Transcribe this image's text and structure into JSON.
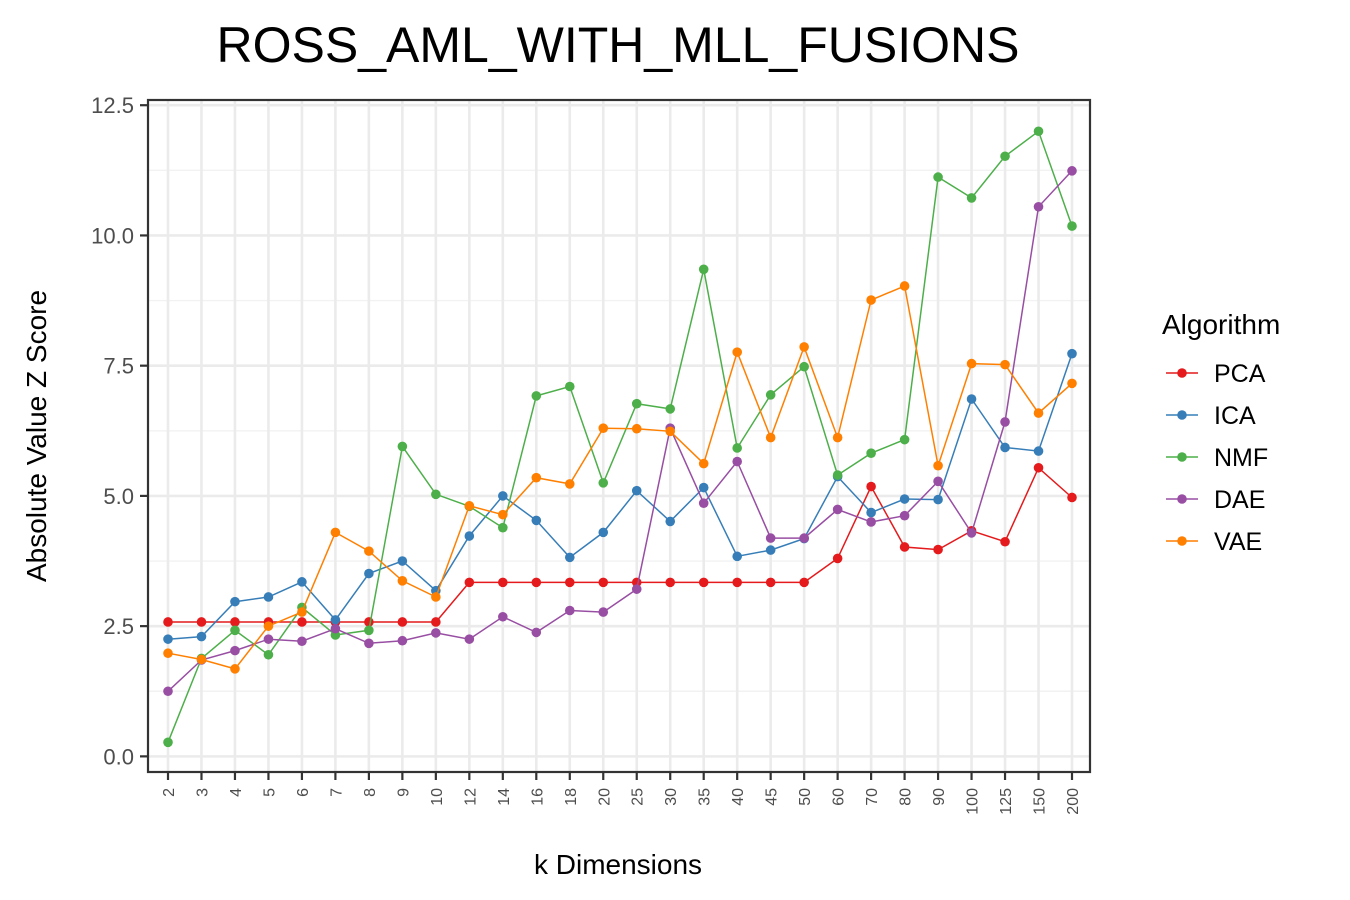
{
  "chart_data": {
    "type": "line",
    "title": "ROSS_AML_WITH_MLL_FUSIONS",
    "xlabel": "k Dimensions",
    "ylabel": "Absolute Value Z Score",
    "categories": [
      "2",
      "3",
      "4",
      "5",
      "6",
      "7",
      "8",
      "9",
      "10",
      "12",
      "14",
      "16",
      "18",
      "20",
      "25",
      "30",
      "35",
      "40",
      "45",
      "50",
      "60",
      "70",
      "80",
      "90",
      "100",
      "125",
      "150",
      "200"
    ],
    "yticks": [
      "0.0",
      "2.5",
      "5.0",
      "7.5",
      "10.0",
      "12.5"
    ],
    "ylim": [
      -0.3,
      12.6
    ],
    "grid": true,
    "legend_title": "Algorithm",
    "legend_position": "right",
    "series": [
      {
        "name": "PCA",
        "color": "#e41a1c",
        "values": [
          2.58,
          2.58,
          2.58,
          2.58,
          2.58,
          2.58,
          2.58,
          2.58,
          2.58,
          3.34,
          3.34,
          3.34,
          3.34,
          3.34,
          3.34,
          3.34,
          3.34,
          3.34,
          3.34,
          3.34,
          3.8,
          5.18,
          4.02,
          3.97,
          4.33,
          4.12,
          5.54,
          4.97
        ]
      },
      {
        "name": "ICA",
        "color": "#377eb8",
        "values": [
          2.25,
          2.3,
          2.97,
          3.06,
          3.35,
          2.62,
          3.51,
          3.75,
          3.18,
          4.23,
          5.0,
          4.53,
          3.82,
          4.3,
          5.1,
          4.51,
          5.16,
          3.84,
          3.96,
          4.18,
          5.37,
          4.68,
          4.94,
          4.93,
          6.86,
          5.93,
          5.86,
          7.73
        ]
      },
      {
        "name": "NMF",
        "color": "#4daf4a",
        "values": [
          0.27,
          1.88,
          2.42,
          1.95,
          2.86,
          2.33,
          2.42,
          5.95,
          5.03,
          4.8,
          4.39,
          6.92,
          7.1,
          5.25,
          6.77,
          6.67,
          9.35,
          5.92,
          6.94,
          7.48,
          5.4,
          5.82,
          6.08,
          11.12,
          10.72,
          11.52,
          12.0,
          10.18
        ]
      },
      {
        "name": "DAE",
        "color": "#984ea3",
        "values": [
          1.25,
          1.85,
          2.03,
          2.25,
          2.21,
          2.45,
          2.17,
          2.22,
          2.37,
          2.25,
          2.68,
          2.38,
          2.8,
          2.77,
          3.21,
          6.3,
          4.86,
          5.66,
          4.19,
          4.19,
          4.74,
          4.5,
          4.62,
          5.28,
          4.29,
          6.42,
          10.55,
          11.24
        ]
      },
      {
        "name": "VAE",
        "color": "#ff7f00",
        "values": [
          1.98,
          1.86,
          1.68,
          2.5,
          2.77,
          4.3,
          3.94,
          3.37,
          3.06,
          4.81,
          4.64,
          5.35,
          5.23,
          6.3,
          6.29,
          6.24,
          5.62,
          7.76,
          6.12,
          7.86,
          6.12,
          8.76,
          9.03,
          5.58,
          7.54,
          7.52,
          6.59,
          7.16
        ]
      }
    ]
  }
}
